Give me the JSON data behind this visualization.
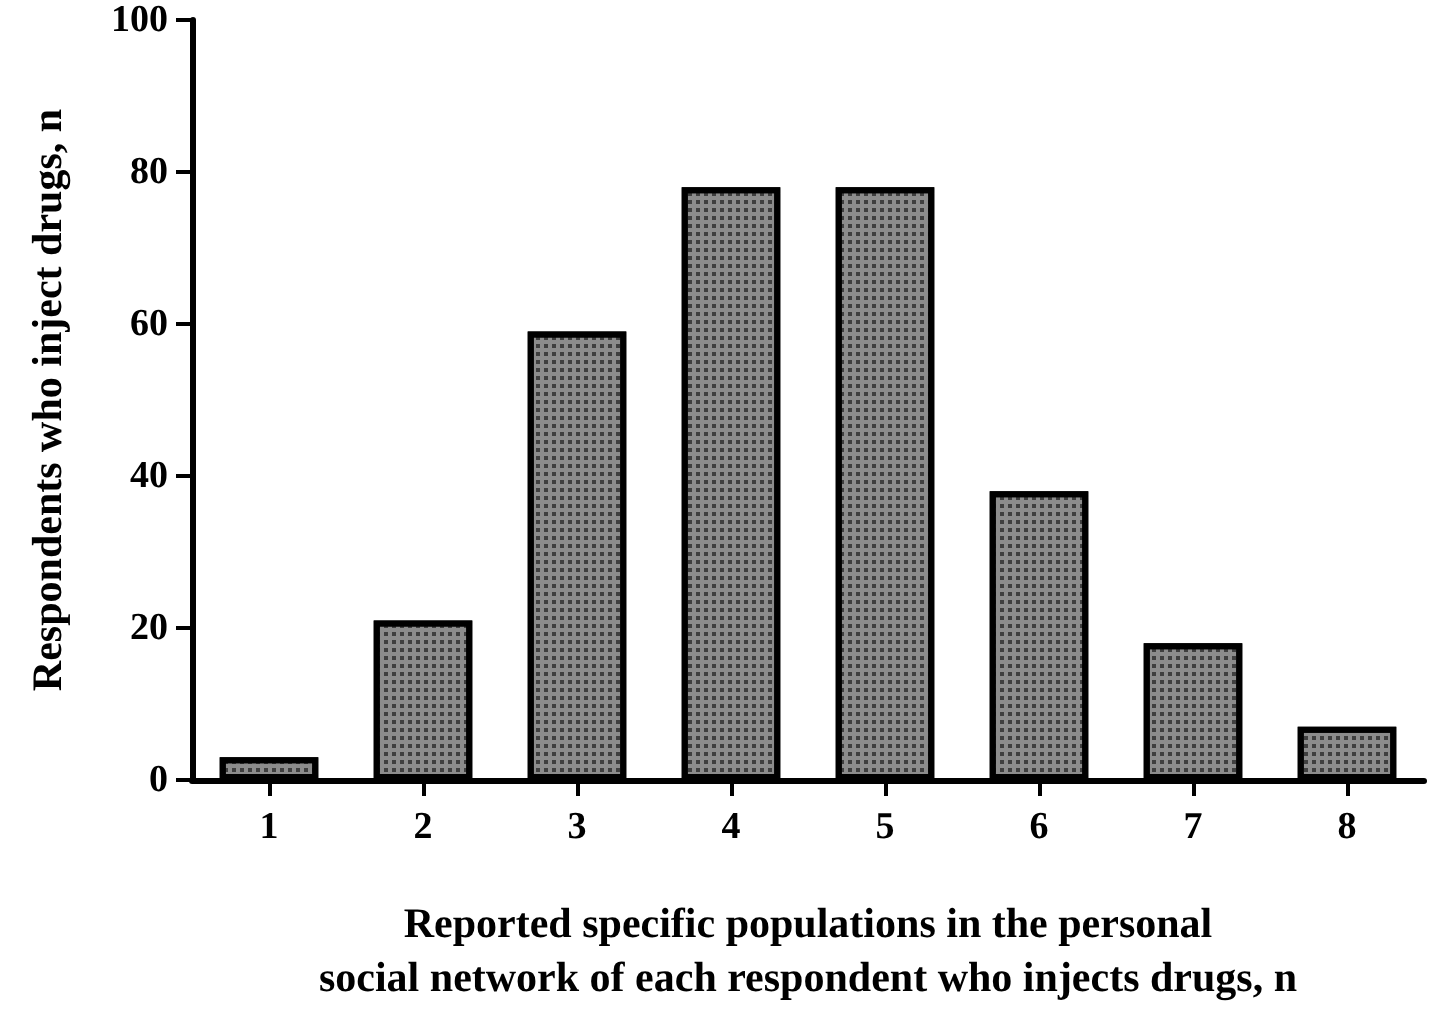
{
  "chart_data": {
    "type": "bar",
    "xlabel": "Reported specific populations in the personal\nsocial network of each respondent who injects drugs, n",
    "ylabel": "Respondents who inject drugs, n",
    "categories": [
      "1",
      "2",
      "3",
      "4",
      "5",
      "6",
      "7",
      "8"
    ],
    "values": [
      3,
      21,
      59,
      78,
      78,
      38,
      18,
      7
    ],
    "color": "#8c8c8c",
    "ylim": [
      0,
      100
    ],
    "yticks": [
      0,
      20,
      40,
      60,
      80,
      100
    ],
    "grid": false
  }
}
